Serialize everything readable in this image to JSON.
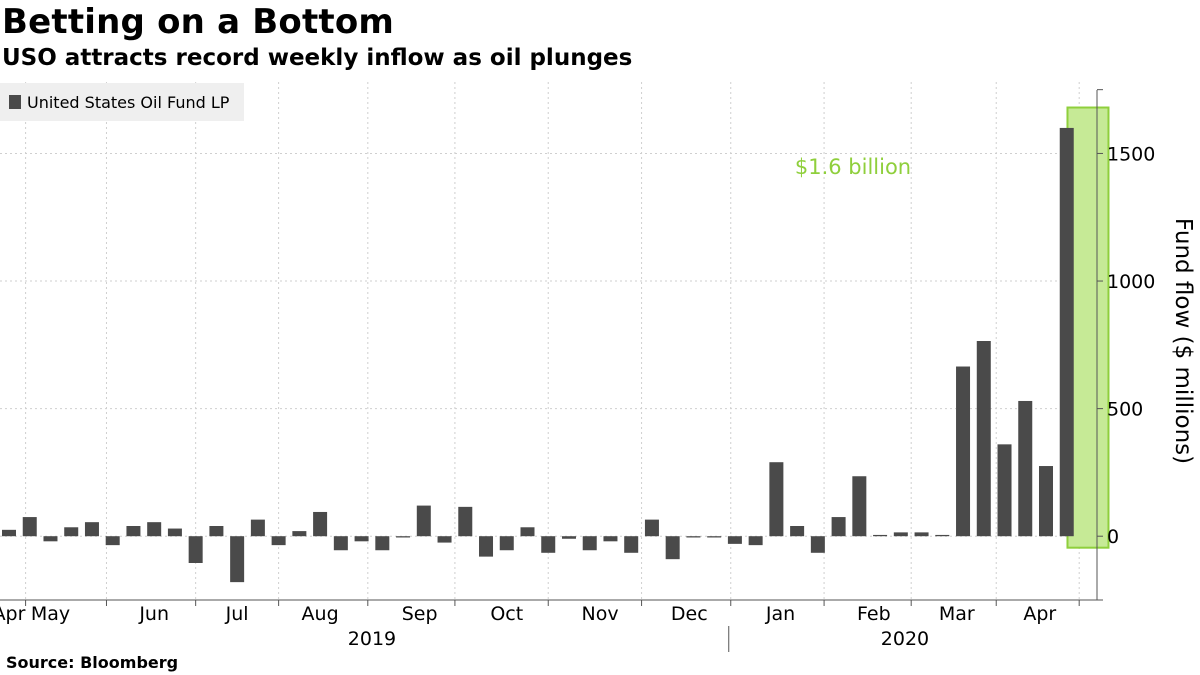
{
  "header": {
    "title": "Betting on a Bottom",
    "subtitle": "USO attracts record weekly inflow as oil plunges"
  },
  "footer": {
    "source": "Source:  Bloomberg"
  },
  "colors": {
    "bar": "#4a4a4a",
    "highlight_fill": "#c6ea96",
    "highlight_stroke": "#8fcf3c",
    "highlight_bar": "#5b8a2f",
    "annotation": "#8fcf3c",
    "grid": "#cfcfcf",
    "legend_bg": "#efefef"
  },
  "chart_data": {
    "type": "bar",
    "ylabel": "Fund flow ($ millions)",
    "ylim": [
      -250,
      1780
    ],
    "yticks": [
      0,
      500,
      1000,
      1500
    ],
    "grid": true,
    "legend": {
      "placement": "top-left",
      "entries": [
        {
          "name": "United States Oil Fund LP",
          "color": "#4a4a4a"
        }
      ]
    },
    "annotation": {
      "text": "$1.6 billion",
      "target_week": 52
    },
    "month_labels": [
      {
        "label": "Apr",
        "week": 0
      },
      {
        "label": "May",
        "week": 2
      },
      {
        "label": "Jun",
        "week": 7
      },
      {
        "label": "Jul",
        "week": 11
      },
      {
        "label": "Aug",
        "week": 15
      },
      {
        "label": "Sep",
        "week": 19.8
      },
      {
        "label": "Oct",
        "week": 24
      },
      {
        "label": "Nov",
        "week": 28.5
      },
      {
        "label": "Dec",
        "week": 32.8
      },
      {
        "label": "Jan",
        "week": 37.2
      },
      {
        "label": "Feb",
        "week": 41.7
      },
      {
        "label": "Mar",
        "week": 45.7
      },
      {
        "label": "Apr",
        "week": 49.7
      }
    ],
    "month_gridlines": [
      0.8,
      4.7,
      9,
      13,
      17.3,
      21.5,
      26,
      30.5,
      34.8,
      39.3,
      43.5,
      47.6,
      51.6
    ],
    "year_labels": [
      {
        "label": "2019",
        "week": 17.5
      },
      {
        "label": "2020",
        "week": 43.2
      }
    ],
    "year_divider_week": 34.8,
    "values": [
      25,
      75,
      -20,
      35,
      55,
      -35,
      40,
      55,
      30,
      -105,
      40,
      -180,
      65,
      -35,
      20,
      95,
      -55,
      -20,
      -55,
      -5,
      120,
      -25,
      115,
      -80,
      -55,
      35,
      -65,
      -10,
      -55,
      -20,
      -65,
      65,
      -90,
      -5,
      -5,
      -30,
      -35,
      290,
      40,
      -65,
      75,
      235,
      5,
      15,
      15,
      5,
      665,
      765,
      360,
      530,
      275,
      1600
    ]
  }
}
